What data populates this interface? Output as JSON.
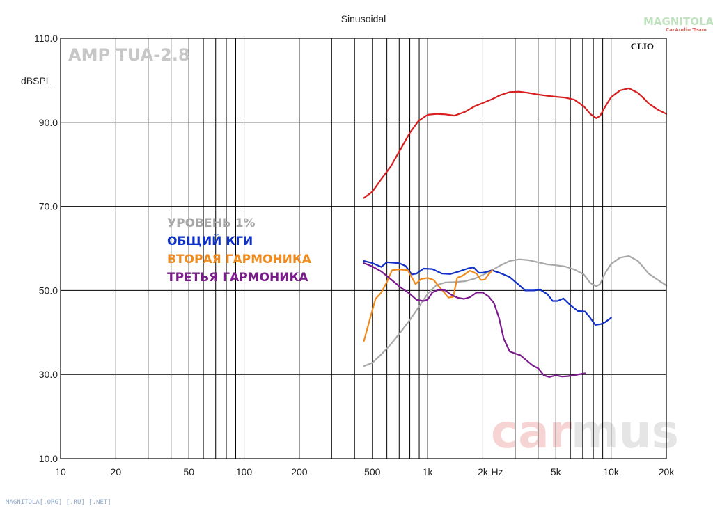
{
  "chart_data": {
    "type": "line",
    "title": "Sinusoidal",
    "ylabel": "dBSPL",
    "xlabel": "Hz",
    "x_scale": "log",
    "xlim": [
      10,
      20000
    ],
    "ylim": [
      10,
      110
    ],
    "grid": true,
    "x_ticks": [
      {
        "value": 10,
        "label": "10"
      },
      {
        "value": 20,
        "label": "20"
      },
      {
        "value": 50,
        "label": "50"
      },
      {
        "value": 100,
        "label": "100"
      },
      {
        "value": 200,
        "label": "200"
      },
      {
        "value": 500,
        "label": "500"
      },
      {
        "value": 1000,
        "label": "1k"
      },
      {
        "value": 2000,
        "label": "2k"
      },
      {
        "value": 5000,
        "label": "5k"
      },
      {
        "value": 10000,
        "label": "10k"
      },
      {
        "value": 20000,
        "label": "20k"
      }
    ],
    "y_ticks": [
      {
        "value": 110,
        "label": "110.0"
      },
      {
        "value": 90,
        "label": "90.0"
      },
      {
        "value": 70,
        "label": "70.0"
      },
      {
        "value": 50,
        "label": "50.0"
      },
      {
        "value": 30,
        "label": "30.0"
      },
      {
        "value": 10,
        "label": "10.0"
      }
    ],
    "series": [
      {
        "color": "#d81e1e",
        "points": [
          [
            450,
            72
          ],
          [
            500,
            73.5
          ],
          [
            560,
            76.5
          ],
          [
            630,
            79.5
          ],
          [
            710,
            83.5
          ],
          [
            800,
            87.5
          ],
          [
            890,
            90.3
          ],
          [
            1000,
            91.8
          ],
          [
            1120,
            92
          ],
          [
            1250,
            91.9
          ],
          [
            1400,
            91.6
          ],
          [
            1600,
            92.5
          ],
          [
            1800,
            93.8
          ],
          [
            2000,
            94.6
          ],
          [
            2240,
            95.5
          ],
          [
            2500,
            96.5
          ],
          [
            2800,
            97.2
          ],
          [
            3150,
            97.3
          ],
          [
            3550,
            97
          ],
          [
            4000,
            96.6
          ],
          [
            4500,
            96.3
          ],
          [
            5000,
            96.1
          ],
          [
            5600,
            95.9
          ],
          [
            6300,
            95.4
          ],
          [
            7100,
            93.8
          ],
          [
            7700,
            92
          ],
          [
            8300,
            91
          ],
          [
            8700,
            91.5
          ],
          [
            9300,
            93.8
          ],
          [
            10000,
            96
          ],
          [
            11200,
            97.6
          ],
          [
            12500,
            98.1
          ],
          [
            14000,
            97
          ],
          [
            15000,
            95.8
          ],
          [
            16000,
            94.5
          ],
          [
            18000,
            93
          ],
          [
            20000,
            92
          ]
        ]
      },
      {
        "name": "УРОВЕНЬ 1%",
        "color": "#a8a8a8",
        "points": [
          [
            450,
            32
          ],
          [
            500,
            32.8
          ],
          [
            560,
            34.8
          ],
          [
            630,
            37.2
          ],
          [
            710,
            40
          ],
          [
            800,
            43
          ],
          [
            900,
            46.2
          ],
          [
            1000,
            49.2
          ],
          [
            1120,
            51.3
          ],
          [
            1250,
            51.9
          ],
          [
            1400,
            52
          ],
          [
            1600,
            52.2
          ],
          [
            1800,
            52.8
          ],
          [
            2000,
            53.7
          ],
          [
            2240,
            54.8
          ],
          [
            2500,
            56
          ],
          [
            2800,
            57
          ],
          [
            3150,
            57.4
          ],
          [
            3550,
            57.2
          ],
          [
            4000,
            56.7
          ],
          [
            4500,
            56.2
          ],
          [
            5000,
            56
          ],
          [
            5600,
            55.7
          ],
          [
            6300,
            55
          ],
          [
            7100,
            53.8
          ],
          [
            7700,
            51.8
          ],
          [
            8300,
            51
          ],
          [
            8700,
            51.5
          ],
          [
            9300,
            54.2
          ],
          [
            10000,
            56.3
          ],
          [
            11200,
            57.8
          ],
          [
            12500,
            58.2
          ],
          [
            14000,
            57
          ],
          [
            15000,
            55.5
          ],
          [
            16000,
            54
          ],
          [
            18000,
            52.5
          ],
          [
            20000,
            51.2
          ]
        ]
      },
      {
        "name": "ОБЩИЙ КГИ",
        "color": "#1030c8",
        "points": [
          [
            450,
            57
          ],
          [
            500,
            56.5
          ],
          [
            560,
            55.6
          ],
          [
            600,
            56.7
          ],
          [
            700,
            56.5
          ],
          [
            760,
            55.8
          ],
          [
            820,
            53.8
          ],
          [
            870,
            54
          ],
          [
            950,
            55.2
          ],
          [
            1060,
            55.1
          ],
          [
            1200,
            54
          ],
          [
            1330,
            53.9
          ],
          [
            1480,
            54.5
          ],
          [
            1650,
            55.2
          ],
          [
            1780,
            55.5
          ],
          [
            1900,
            54.2
          ],
          [
            2000,
            54.2
          ],
          [
            2240,
            54.8
          ],
          [
            2500,
            54.1
          ],
          [
            2800,
            53.2
          ],
          [
            3150,
            51.3
          ],
          [
            3400,
            50
          ],
          [
            3800,
            50
          ],
          [
            4100,
            50.2
          ],
          [
            4500,
            49.1
          ],
          [
            4800,
            47.5
          ],
          [
            5100,
            47.5
          ],
          [
            5500,
            48.1
          ],
          [
            6000,
            46.5
          ],
          [
            6600,
            45.1
          ],
          [
            7200,
            45
          ],
          [
            7700,
            43.5
          ],
          [
            8200,
            41.8
          ],
          [
            8800,
            42
          ],
          [
            9300,
            42.5
          ],
          [
            10000,
            43.5
          ]
        ]
      },
      {
        "name": "ВТОРАЯ ГАРМОНИКА",
        "color": "#f08a1c",
        "points": [
          [
            450,
            38
          ],
          [
            480,
            42.5
          ],
          [
            520,
            48
          ],
          [
            560,
            49.5
          ],
          [
            600,
            52
          ],
          [
            640,
            54.8
          ],
          [
            700,
            55
          ],
          [
            780,
            54.8
          ],
          [
            860,
            51.5
          ],
          [
            920,
            52.7
          ],
          [
            1000,
            53
          ],
          [
            1080,
            52.5
          ],
          [
            1150,
            51
          ],
          [
            1220,
            49.7
          ],
          [
            1300,
            48.3
          ],
          [
            1380,
            48.5
          ],
          [
            1450,
            53
          ],
          [
            1550,
            53.5
          ],
          [
            1700,
            54.7
          ],
          [
            1850,
            54
          ],
          [
            1950,
            52.5
          ],
          [
            2050,
            52.6
          ],
          [
            2150,
            53.8
          ],
          [
            2250,
            54.8
          ]
        ]
      },
      {
        "name": "ТРЕТЬЯ ГАРМОНИКА",
        "color": "#7a1a8c",
        "points": [
          [
            450,
            56.5
          ],
          [
            500,
            55.7
          ],
          [
            560,
            54.5
          ],
          [
            630,
            52.7
          ],
          [
            710,
            50.8
          ],
          [
            800,
            49.2
          ],
          [
            870,
            47.8
          ],
          [
            950,
            47.5
          ],
          [
            1000,
            47.8
          ],
          [
            1060,
            49.5
          ],
          [
            1150,
            50.2
          ],
          [
            1250,
            50
          ],
          [
            1330,
            49.1
          ],
          [
            1450,
            48.3
          ],
          [
            1580,
            48
          ],
          [
            1700,
            48.4
          ],
          [
            1850,
            49.5
          ],
          [
            2000,
            49.5
          ],
          [
            2150,
            48.6
          ],
          [
            2300,
            47
          ],
          [
            2450,
            43.5
          ],
          [
            2600,
            38.5
          ],
          [
            2800,
            35.5
          ],
          [
            3000,
            35
          ],
          [
            3200,
            34.6
          ],
          [
            3450,
            33.4
          ],
          [
            3750,
            32.1
          ],
          [
            4000,
            31.5
          ],
          [
            4300,
            29.8
          ],
          [
            4600,
            29.4
          ],
          [
            5000,
            29.8
          ],
          [
            5400,
            29.5
          ],
          [
            5800,
            29.6
          ],
          [
            6300,
            29.8
          ],
          [
            6800,
            30.1
          ],
          [
            7200,
            30.3
          ]
        ]
      }
    ]
  },
  "labels": {
    "brand": "AMP TUA-2.8",
    "clio": "CLIO",
    "watermark_a": "car",
    "watermark_b": "mus",
    "logo_text": "MAGNITOLA",
    "logo_sub": "CarAudio Team",
    "footer": "MAGNITOLA[.ORG] [.RU] [.NET]"
  }
}
